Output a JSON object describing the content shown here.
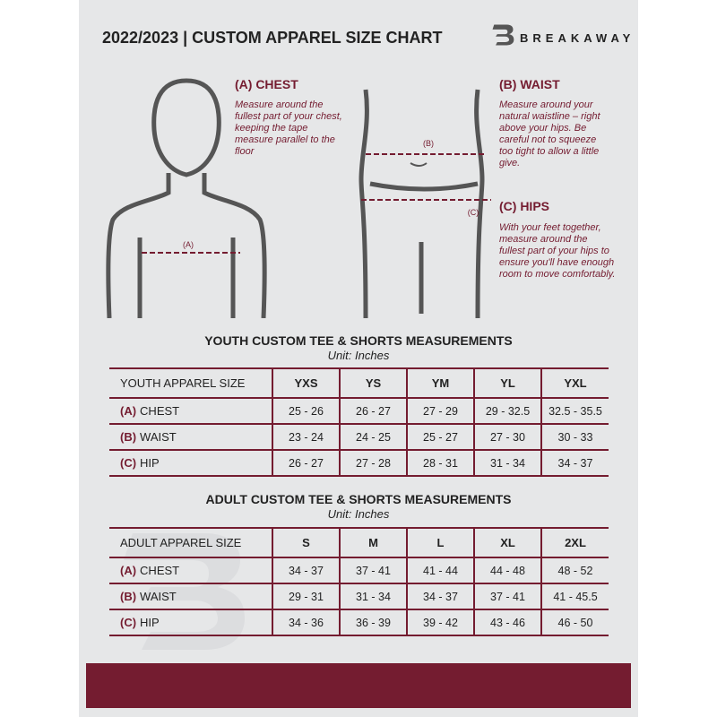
{
  "header": {
    "title": "2022/2023  |  CUSTOM APPAREL SIZE CHART",
    "brand": "BREAKAWAY",
    "logo_letter": "B"
  },
  "measures": {
    "chest": {
      "heading": "(A) CHEST",
      "text": "Measure around the fullest part of your chest, keeping the tape measure parallel to the floor",
      "marker": "(A)"
    },
    "waist": {
      "heading": "(B) WAIST",
      "text": "Measure around your natural waistline – right above your hips. Be careful not to squeeze too tight to allow a little give.",
      "marker": "(B)"
    },
    "hips": {
      "heading": "(C) HIPS",
      "text": "With your feet together, measure around the fullest part of your hips to ensure you'll have enough room to move comfortably.",
      "marker": "(C)"
    }
  },
  "youth": {
    "title": "YOUTH CUSTOM TEE & SHORTS MEASUREMENTS",
    "unit": "Unit: Inches",
    "size_label": "YOUTH APPAREL SIZE",
    "sizes": [
      "YXS",
      "YS",
      "YM",
      "YL",
      "YXL"
    ],
    "rows": [
      {
        "code": "(A)",
        "name": "CHEST",
        "values": [
          "25 - 26",
          "26 - 27",
          "27 - 29",
          "29 - 32.5",
          "32.5 - 35.5"
        ]
      },
      {
        "code": "(B)",
        "name": "WAIST",
        "values": [
          "23 - 24",
          "24 - 25",
          "25 - 27",
          "27 - 30",
          "30 - 33"
        ]
      },
      {
        "code": "(C)",
        "name": "HIP",
        "values": [
          "26 - 27",
          "27 - 28",
          "28 - 31",
          "31 - 34",
          "34 - 37"
        ]
      }
    ]
  },
  "adult": {
    "title": "ADULT CUSTOM TEE & SHORTS MEASUREMENTS",
    "unit": "Unit: Inches",
    "size_label": "ADULT APPAREL SIZE",
    "sizes": [
      "S",
      "M",
      "L",
      "XL",
      "2XL"
    ],
    "rows": [
      {
        "code": "(A)",
        "name": "CHEST",
        "values": [
          "34 - 37",
          "37 - 41",
          "41 - 44",
          "44 - 48",
          "48 - 52"
        ]
      },
      {
        "code": "(B)",
        "name": "WAIST",
        "values": [
          "29 - 31",
          "31 - 34",
          "34 - 37",
          "37 - 41",
          "41 - 45.5"
        ]
      },
      {
        "code": "(C)",
        "name": "HIP",
        "values": [
          "34 - 36",
          "36 - 39",
          "39 - 42",
          "43 - 46",
          "46 - 50"
        ]
      }
    ]
  },
  "colors": {
    "accent": "#741c30",
    "background": "#e6e7e8"
  }
}
